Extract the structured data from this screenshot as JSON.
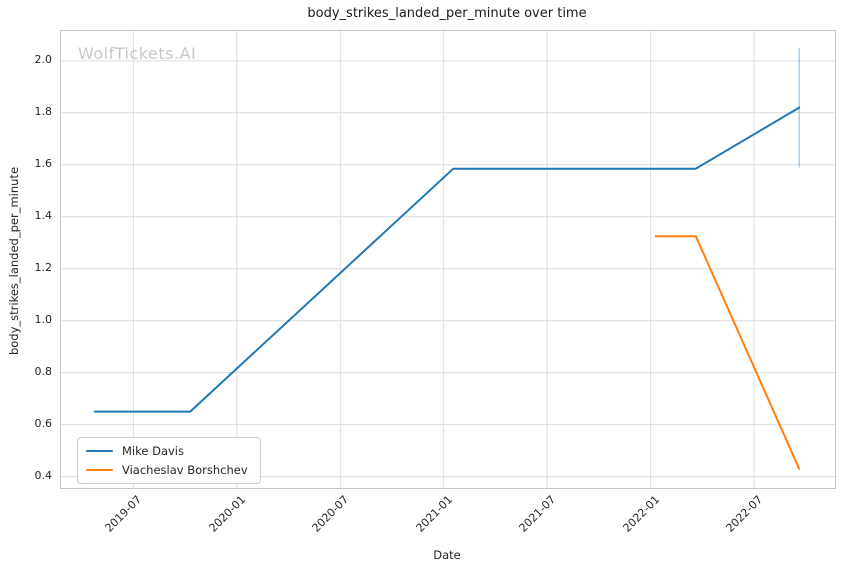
{
  "watermark": "WolfTickets.AI",
  "chart_data": {
    "type": "line",
    "title": "body_strikes_landed_per_minute over time",
    "xlabel": "Date",
    "ylabel": "body_strikes_landed_per_minute",
    "grid": true,
    "legend_position": "lower left",
    "x_axis": {
      "range_months_since_2019_01": [
        1.8,
        46.7
      ],
      "ticks": [
        {
          "label": "2019-07",
          "month": 6
        },
        {
          "label": "2020-01",
          "month": 12
        },
        {
          "label": "2020-07",
          "month": 18
        },
        {
          "label": "2021-01",
          "month": 24
        },
        {
          "label": "2021-07",
          "month": 30
        },
        {
          "label": "2022-01",
          "month": 36
        },
        {
          "label": "2022-07",
          "month": 42
        }
      ]
    },
    "y_axis": {
      "range": [
        0.356,
        2.115
      ],
      "ticks": [
        0.4,
        0.6,
        0.8,
        1.0,
        1.2,
        1.4,
        1.6,
        1.8,
        2.0
      ]
    },
    "colors": {
      "grid": "#dcdcdc",
      "error_bar": "rgba(31,119,180,0.35)",
      "text": "#262626"
    },
    "series": [
      {
        "name": "Mike Davis",
        "color": "#1f77b4",
        "points": [
          {
            "date": "2019-04-24",
            "value": 0.65
          },
          {
            "date": "2019-10-10",
            "value": 0.65
          },
          {
            "date": "2021-01-18",
            "value": 1.585
          },
          {
            "date": "2022-03-20",
            "value": 1.585
          },
          {
            "date": "2022-09-20",
            "value": 1.82
          }
        ],
        "error_bar": {
          "date": "2022-09-20",
          "low": 1.59,
          "high": 2.05
        }
      },
      {
        "name": "Viacheslav Borshchev",
        "color": "#ff7f0e",
        "points": [
          {
            "date": "2022-01-10",
            "value": 1.325
          },
          {
            "date": "2022-03-20",
            "value": 1.325
          },
          {
            "date": "2022-09-20",
            "value": 0.43
          }
        ],
        "error_bar": null
      }
    ]
  }
}
